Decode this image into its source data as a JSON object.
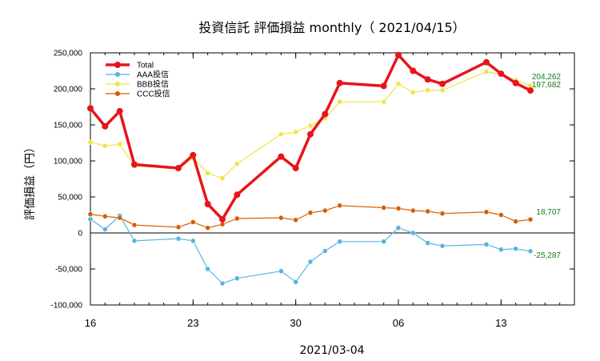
{
  "chart_data": {
    "type": "line",
    "title": "投資信託 評価損益 monthly（ 2021/04/15）",
    "xlabel": "2021/03-04",
    "ylabel": "評価損益（円）",
    "ylim": [
      -100000,
      250000
    ],
    "yticks": [
      250000,
      200000,
      150000,
      100000,
      50000,
      0,
      -50000,
      -100000
    ],
    "ytick_labels": [
      "250,000",
      "200,000",
      "150,000",
      "100,000",
      "50,000",
      "0",
      "-50,000",
      "-100,000"
    ],
    "xlim": [
      "2021-03-16",
      "2021-04-18"
    ],
    "xticks": [
      "2021-03-16",
      "2021-03-23",
      "2021-03-30",
      "2021-04-06",
      "2021-04-13"
    ],
    "xtick_labels": [
      "16",
      "23",
      "30",
      "06",
      "13"
    ],
    "grid": false,
    "legend": "top-left",
    "series": [
      {
        "name": "Total",
        "color": "#e8141b",
        "x": [
          "2021-03-16",
          "2021-03-17",
          "2021-03-18",
          "2021-03-19",
          "2021-03-22",
          "2021-03-23",
          "2021-03-24",
          "2021-03-25",
          "2021-03-26",
          "2021-03-29",
          "2021-03-30",
          "2021-03-31",
          "2021-04-01",
          "2021-04-02",
          "2021-04-05",
          "2021-04-06",
          "2021-04-07",
          "2021-04-08",
          "2021-04-09",
          "2021-04-12",
          "2021-04-13",
          "2021-04-14",
          "2021-04-15"
        ],
        "values": [
          173000,
          148000,
          169000,
          95000,
          90000,
          108000,
          40000,
          19000,
          53000,
          106000,
          90000,
          137000,
          165000,
          208000,
          204000,
          247000,
          225000,
          213000,
          207000,
          237000,
          221000,
          208000,
          197682
        ]
      },
      {
        "name": "AAA投信",
        "color": "#56b4e0",
        "x": [
          "2021-03-16",
          "2021-03-17",
          "2021-03-18",
          "2021-03-19",
          "2021-03-22",
          "2021-03-23",
          "2021-03-24",
          "2021-03-25",
          "2021-03-26",
          "2021-03-29",
          "2021-03-30",
          "2021-03-31",
          "2021-04-01",
          "2021-04-02",
          "2021-04-05",
          "2021-04-06",
          "2021-04-07",
          "2021-04-08",
          "2021-04-09",
          "2021-04-12",
          "2021-04-13",
          "2021-04-14",
          "2021-04-15"
        ],
        "values": [
          19000,
          5000,
          24000,
          -11000,
          -8000,
          -11000,
          -50000,
          -70000,
          -63000,
          -53000,
          -68000,
          -40000,
          -25000,
          -12000,
          -12000,
          7000,
          0,
          -14000,
          -18000,
          -16000,
          -23000,
          -22000,
          -25287
        ]
      },
      {
        "name": "BBB投信",
        "color": "#f0e442",
        "x": [
          "2021-03-16",
          "2021-03-17",
          "2021-03-18",
          "2021-03-19",
          "2021-03-22",
          "2021-03-23",
          "2021-03-24",
          "2021-03-25",
          "2021-03-26",
          "2021-03-29",
          "2021-03-30",
          "2021-03-31",
          "2021-04-01",
          "2021-04-02",
          "2021-04-05",
          "2021-04-06",
          "2021-04-07",
          "2021-04-08",
          "2021-04-09",
          "2021-04-12",
          "2021-04-13",
          "2021-04-14",
          "2021-04-15"
        ],
        "values": [
          126000,
          121000,
          123000,
          93000,
          89000,
          104000,
          83000,
          76000,
          96000,
          137000,
          140000,
          149000,
          159000,
          182000,
          182000,
          207000,
          195000,
          198000,
          198000,
          224000,
          220000,
          212000,
          204262
        ]
      },
      {
        "name": "CCC投信",
        "color": "#d55e00",
        "x": [
          "2021-03-16",
          "2021-03-17",
          "2021-03-18",
          "2021-03-19",
          "2021-03-22",
          "2021-03-23",
          "2021-03-24",
          "2021-03-25",
          "2021-03-26",
          "2021-03-29",
          "2021-03-30",
          "2021-03-31",
          "2021-04-01",
          "2021-04-02",
          "2021-04-05",
          "2021-04-06",
          "2021-04-07",
          "2021-04-08",
          "2021-04-09",
          "2021-04-12",
          "2021-04-13",
          "2021-04-14",
          "2021-04-15"
        ],
        "values": [
          26000,
          23000,
          21000,
          11000,
          8000,
          15000,
          7000,
          12000,
          20000,
          21000,
          18000,
          28000,
          31000,
          38000,
          35000,
          34000,
          31000,
          30000,
          27000,
          29000,
          25000,
          16000,
          18707
        ]
      }
    ],
    "annotations": [
      {
        "text": "204,262",
        "x": "2021-04-15",
        "y": 204262
      },
      {
        "text": "197,682",
        "x": "2021-04-15",
        "y": 197682
      },
      {
        "text": "18,707",
        "x": "2021-04-15",
        "y": 18707
      },
      {
        "text": "-25,287",
        "x": "2021-04-15",
        "y": -25287
      }
    ]
  }
}
